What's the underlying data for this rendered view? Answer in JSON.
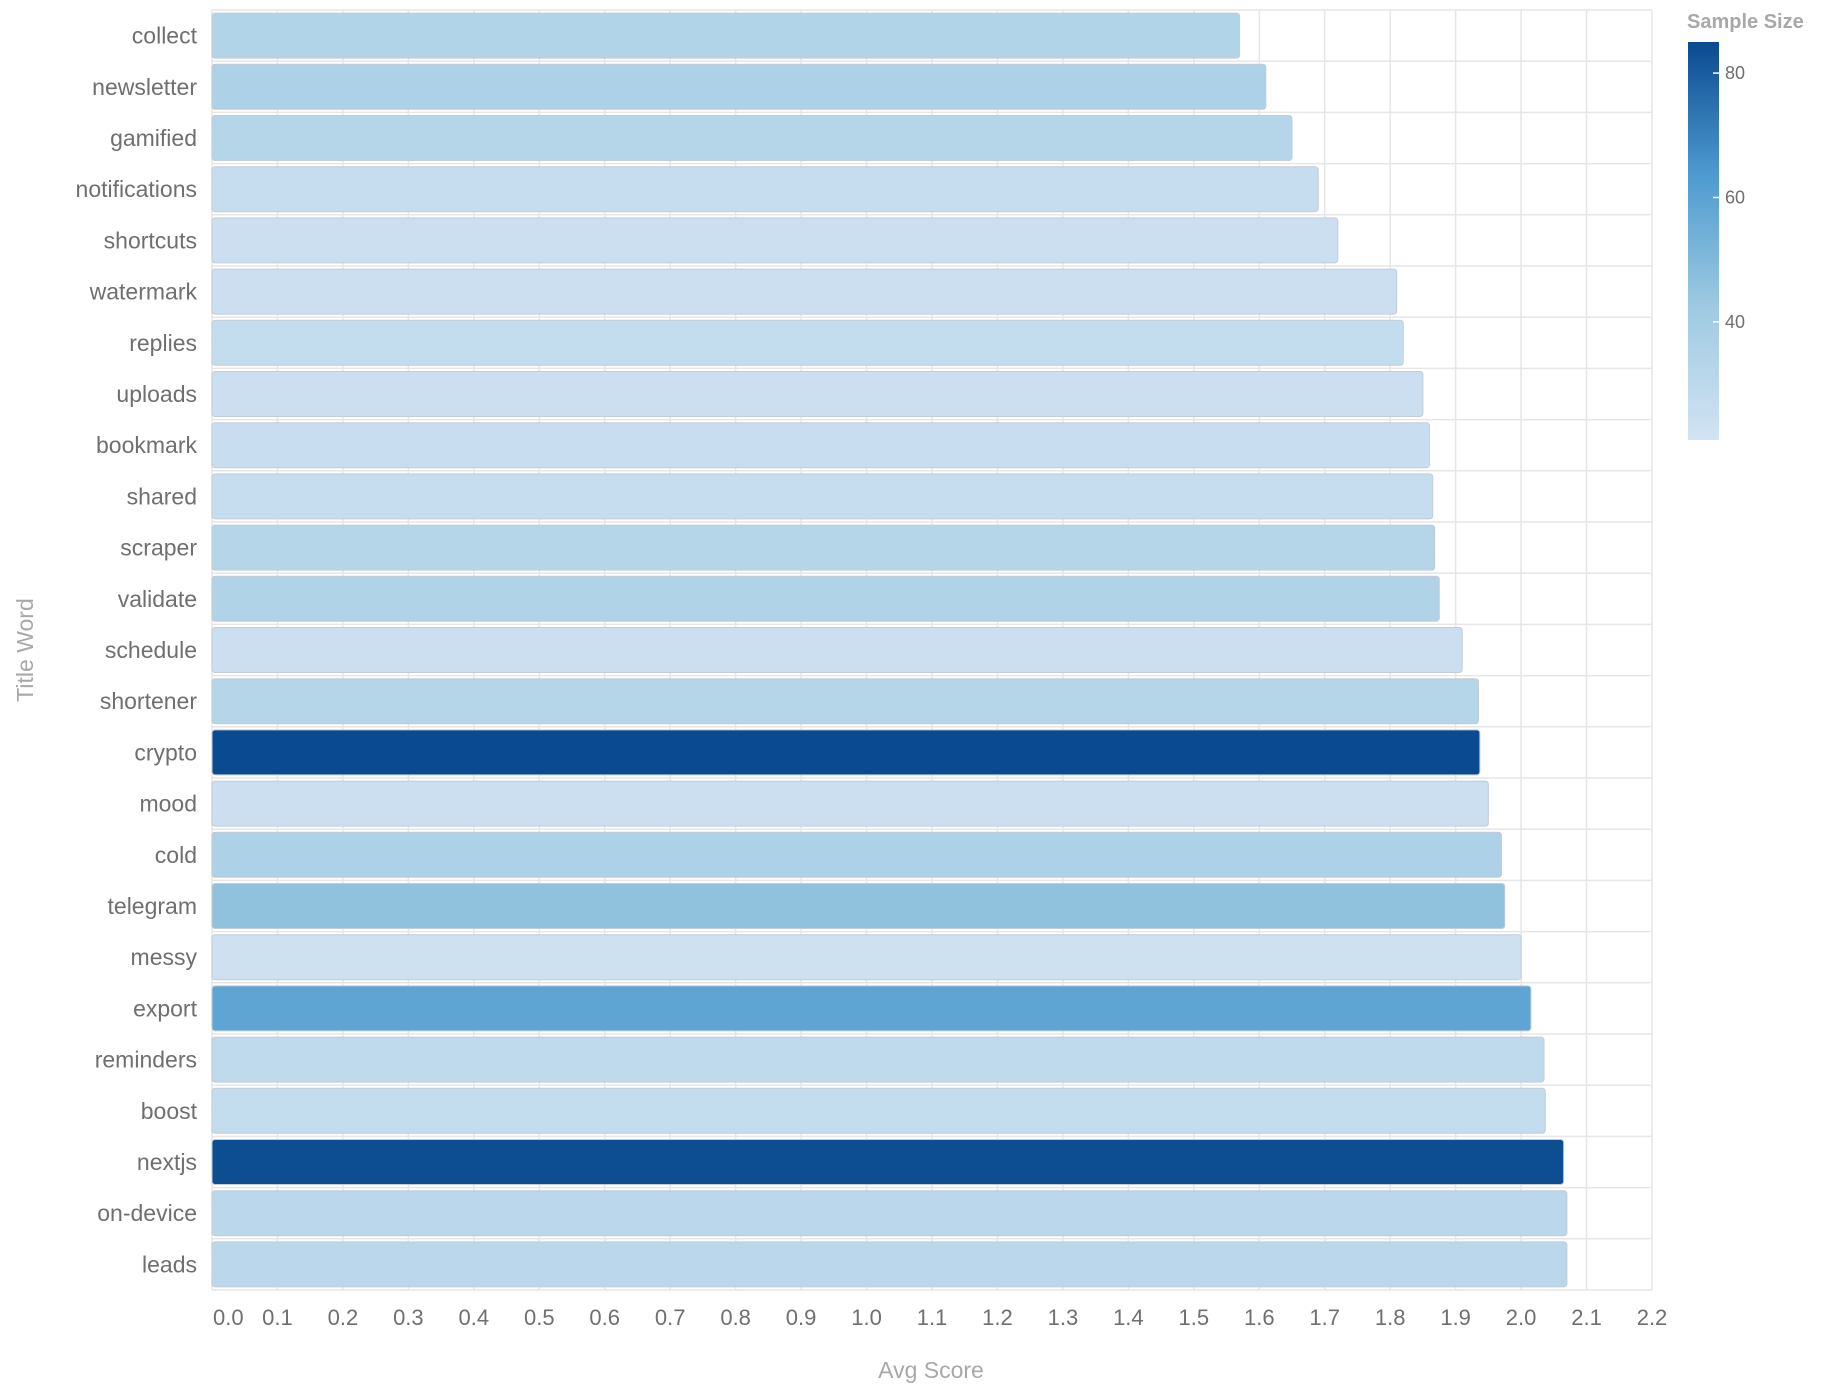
{
  "chart_data": {
    "type": "bar",
    "orientation": "horizontal",
    "xlabel": "Avg Score",
    "ylabel": "Title Word",
    "xlim": [
      0,
      2.2
    ],
    "x_ticks": [
      "0.0",
      "0.1",
      "0.2",
      "0.3",
      "0.4",
      "0.5",
      "0.6",
      "0.7",
      "0.8",
      "0.9",
      "1.0",
      "1.1",
      "1.2",
      "1.3",
      "1.4",
      "1.5",
      "1.6",
      "1.7",
      "1.8",
      "1.9",
      "2.0",
      "2.1",
      "2.2"
    ],
    "grid": true,
    "color_scale": {
      "title": "Sample Size",
      "min": 21,
      "max": 85,
      "ticks": [
        "40",
        "60",
        "80"
      ],
      "colors": [
        "#d2e3f3",
        "#9ecae1",
        "#4d9ad0",
        "#0a4a90"
      ],
      "placement": "right"
    },
    "categories": [
      "collect",
      "newsletter",
      "gamified",
      "notifications",
      "shortcuts",
      "watermark",
      "replies",
      "uploads",
      "bookmark",
      "shared",
      "scraper",
      "validate",
      "schedule",
      "shortener",
      "crypto",
      "mood",
      "cold",
      "telegram",
      "messy",
      "export",
      "reminders",
      "boost",
      "nextjs",
      "on-device",
      "leads"
    ],
    "values": [
      1.57,
      1.61,
      1.65,
      1.69,
      1.72,
      1.81,
      1.82,
      1.85,
      1.86,
      1.865,
      1.868,
      1.875,
      1.91,
      1.935,
      1.937,
      1.95,
      1.97,
      1.975,
      2.0,
      2.015,
      2.035,
      2.037,
      2.065,
      2.07,
      2.07
    ],
    "sample_sizes": [
      34,
      36,
      33,
      26,
      24,
      24,
      27,
      24,
      25,
      26,
      33,
      35,
      24,
      33,
      85,
      24,
      36,
      46,
      23,
      59,
      29,
      27,
      84,
      31,
      31
    ]
  }
}
